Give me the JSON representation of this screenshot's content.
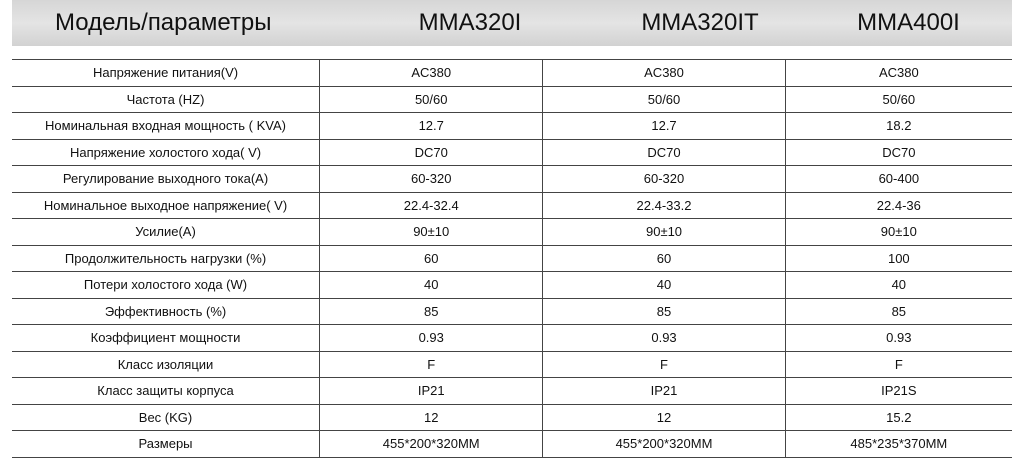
{
  "header": {
    "title": "Модель/параметры",
    "columns": [
      "MMA320I",
      "MMA320IT",
      "MMA400I"
    ]
  },
  "table": {
    "rows": [
      [
        "Напряжение питания(V)",
        "AC380",
        "AC380",
        "AC380"
      ],
      [
        "Частота (HZ)",
        "50/60",
        "50/60",
        "50/60"
      ],
      [
        "Номинальная входная мощность ( KVA)",
        "12.7",
        "12.7",
        "18.2"
      ],
      [
        "Напряжение холостого хода( V)",
        "DC70",
        "DC70",
        "DC70"
      ],
      [
        "Регулирование выходного тока(A)",
        "60-320",
        "60-320",
        "60-400"
      ],
      [
        "Номинальное выходное напряжение( V)",
        "22.4-32.4",
        "22.4-33.2",
        "22.4-36"
      ],
      [
        "Усилие(A)",
        "90±10",
        "90±10",
        "90±10"
      ],
      [
        "Продолжительность нагрузки (%)",
        "60",
        "60",
        "100"
      ],
      [
        "Потери холостого хода (W)",
        "40",
        "40",
        "40"
      ],
      [
        "Эффективность (%)",
        "85",
        "85",
        "85"
      ],
      [
        "Коэффициент мощности",
        "0.93",
        "0.93",
        "0.93"
      ],
      [
        "Класс изоляции",
        "F",
        "F",
        "F"
      ],
      [
        "Класс защиты корпуса",
        "IP21",
        "IP21",
        "IP21S"
      ],
      [
        "Вес (KG)",
        "12",
        "12",
        "15.2"
      ],
      [
        "Размеры",
        "455*200*320MM",
        "455*200*320MM",
        "485*235*370MM"
      ]
    ]
  }
}
